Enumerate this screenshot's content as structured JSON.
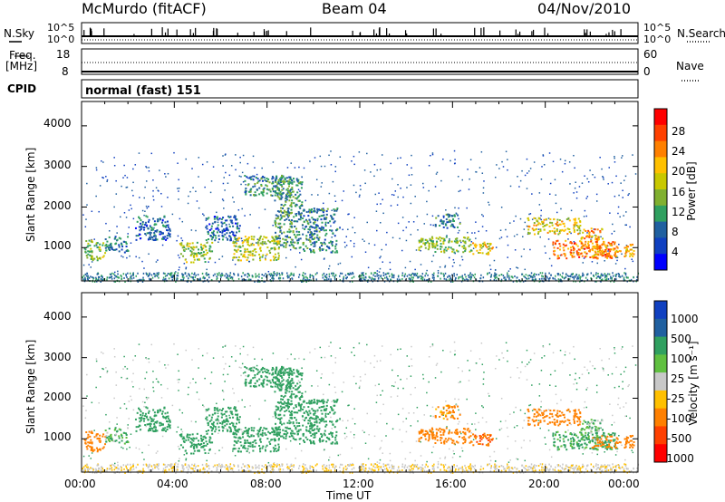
{
  "header": {
    "station": "McMurdo (fitACF)",
    "beam": "Beam 04",
    "date": "04/Nov/2010"
  },
  "sky_panel": {
    "left_label": "N.Sky",
    "right_label": "N.Search",
    "left_ticks": [
      "10^5",
      "10^0"
    ],
    "right_ticks": [
      "10^5",
      "10^0"
    ]
  },
  "freq_panel": {
    "left_label": "Freq.",
    "left_unit": "[MHz]",
    "right_label": "Nave",
    "left_ticks": [
      "18",
      "8"
    ],
    "right_ticks": [
      "60",
      "0"
    ]
  },
  "cpid": {
    "label": "CPID",
    "value": "normal (fast) 151"
  },
  "power_panel": {
    "ylabel": "Slant Range [km]",
    "yticks": [
      "4000",
      "3000",
      "2000",
      "1000"
    ],
    "colorbar": {
      "label": "Power [dB]",
      "ticks": [
        "28",
        "24",
        "20",
        "16",
        "12",
        "8",
        "4"
      ],
      "colors": [
        "#ff0000",
        "#ff4000",
        "#ff8000",
        "#ffc000",
        "#c8c800",
        "#80b030",
        "#30a060",
        "#2060a0",
        "#1040c0",
        "#0000ff"
      ]
    }
  },
  "velocity_panel": {
    "ylabel": "Slant Range [km]",
    "yticks": [
      "4000",
      "3000",
      "2000",
      "1000"
    ],
    "colorbar": {
      "label": "Velocity [m s⁻¹]",
      "ticks": [
        "1000",
        "500",
        "100",
        "25",
        "-25",
        "-100",
        "-500",
        "-1000"
      ],
      "colors": [
        "#1040c0",
        "#2060a0",
        "#30a060",
        "#60c040",
        "#c8c8c8",
        "#ffc000",
        "#ff8000",
        "#ff4000",
        "#ff0000"
      ]
    }
  },
  "xaxis": {
    "label": "Time UT",
    "ticks": [
      "00:00",
      "04:00",
      "08:00",
      "12:00",
      "16:00",
      "20:00",
      "00:00"
    ]
  },
  "chart_data": {
    "type": "heatmap",
    "title": "McMurdo (fitACF) Beam 04 04/Nov/2010",
    "xlabel": "Time UT",
    "ylabel": "Slant Range [km]",
    "xlim": [
      0,
      24
    ],
    "ylim": [
      180,
      4600
    ],
    "power_clim": [
      0,
      30
    ],
    "velocity_clim": [
      -1000,
      1000
    ],
    "blobs": [
      {
        "t0": 0.1,
        "t1": 1.0,
        "r0": 700,
        "r1": 1200,
        "power": 14,
        "velocity": -400
      },
      {
        "t0": 1.0,
        "t1": 2.0,
        "r0": 900,
        "r1": 1300,
        "power": 7,
        "velocity": 100
      },
      {
        "t0": 2.3,
        "t1": 3.8,
        "r0": 1200,
        "r1": 1800,
        "power": 6,
        "velocity": 200
      },
      {
        "t0": 4.2,
        "t1": 5.6,
        "r0": 650,
        "r1": 1150,
        "power": 14,
        "velocity": 350
      },
      {
        "t0": 5.3,
        "t1": 6.8,
        "r0": 1200,
        "r1": 1800,
        "power": 6,
        "velocity": 300
      },
      {
        "t0": 6.5,
        "t1": 8.5,
        "r0": 700,
        "r1": 1300,
        "power": 16,
        "velocity": 300
      },
      {
        "t0": 7.0,
        "t1": 9.0,
        "r0": 2300,
        "r1": 2800,
        "power": 9,
        "velocity": 350
      },
      {
        "t0": 8.3,
        "t1": 9.5,
        "r0": 1000,
        "r1": 2800,
        "power": 10,
        "velocity": 400
      },
      {
        "t0": 9.5,
        "t1": 11.0,
        "r0": 900,
        "r1": 2000,
        "power": 8,
        "velocity": 300
      },
      {
        "t0": 14.5,
        "t1": 16.8,
        "r0": 900,
        "r1": 1300,
        "power": 14,
        "velocity": -350
      },
      {
        "t0": 16.8,
        "t1": 17.8,
        "r0": 850,
        "r1": 1150,
        "power": 18,
        "velocity": -450
      },
      {
        "t0": 15.2,
        "t1": 16.3,
        "r0": 1500,
        "r1": 1850,
        "power": 8,
        "velocity": -150
      },
      {
        "t0": 19.2,
        "t1": 21.5,
        "r0": 1350,
        "r1": 1750,
        "power": 18,
        "velocity": -250
      },
      {
        "t0": 20.3,
        "t1": 23.0,
        "r0": 750,
        "r1": 1200,
        "power": 24,
        "velocity": 150
      },
      {
        "t0": 22.0,
        "t1": 23.8,
        "r0": 800,
        "r1": 1100,
        "power": 20,
        "velocity": -200
      },
      {
        "t0": 21.5,
        "t1": 22.5,
        "r0": 1000,
        "r1": 1500,
        "power": 22,
        "velocity": 80
      }
    ],
    "ground_scatter_band": {
      "r0": 180,
      "r1": 400,
      "power": 6
    }
  }
}
